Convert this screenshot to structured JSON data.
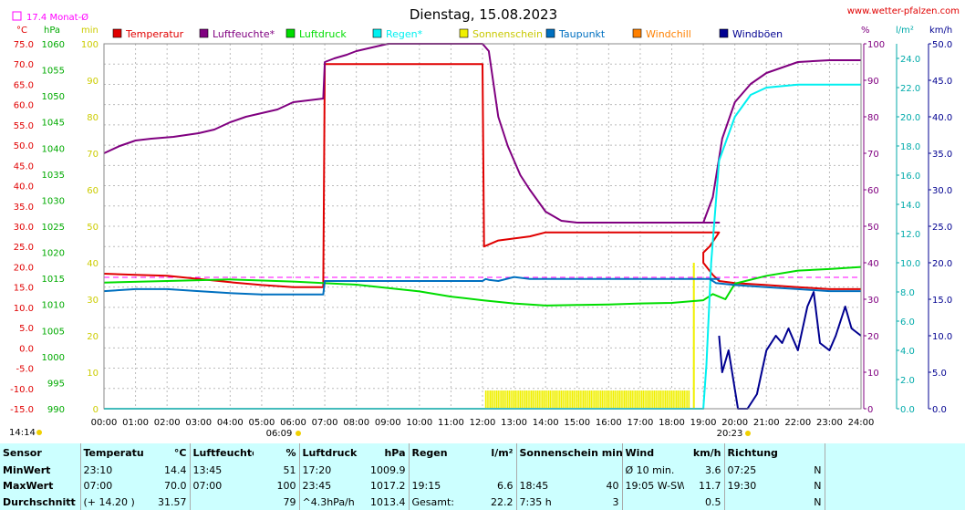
{
  "header": {
    "title": "Dienstag, 15.08.2023",
    "site": "www.wetter-pfalzen.com",
    "month_avg": "17.4 Monat-Ø",
    "start_time": "14:14",
    "sunrise_time": "06:09",
    "sunset_time": "20:23"
  },
  "units": {
    "temp": "°C",
    "press": "hPa",
    "sun": "min",
    "pct": "%",
    "rain": "l/m²",
    "wind": "km/h"
  },
  "colors": {
    "temperatur": "#e00000",
    "luftfeuchte": "#800080",
    "luftdruck": "#00dd00",
    "regen": "#00f0f0",
    "sonnenschein": "#f0f000",
    "taupunkt": "#0070c0",
    "windchill": "#ff8000",
    "windboeen": "#000090",
    "monthavg": "#ff00ff"
  },
  "chart_data": {
    "type": "line",
    "x_unit": "hours",
    "x_ticks": [
      "00:00",
      "01:00",
      "02:00",
      "03:00",
      "04:00",
      "05:00",
      "06:00",
      "07:00",
      "08:00",
      "09:00",
      "10:00",
      "11:00",
      "12:00",
      "13:00",
      "14:00",
      "15:00",
      "16:00",
      "17:00",
      "18:00",
      "19:00",
      "20:00",
      "21:00",
      "22:00",
      "23:00",
      "24:00"
    ],
    "axes": {
      "temp": {
        "min": -15,
        "max": 75,
        "ticks": [
          "75.0",
          "70.0",
          "65.0",
          "60.0",
          "55.0",
          "50.0",
          "45.0",
          "40.0",
          "35.0",
          "30.0",
          "25.0",
          "20.0",
          "15.0",
          "10.0",
          "5.0",
          "0.0",
          "-5.0",
          "-10.0",
          "-15.0"
        ]
      },
      "press": {
        "min": 990,
        "max": 1060,
        "ticks": [
          "1060",
          "1055",
          "1050",
          "1045",
          "1040",
          "1035",
          "1030",
          "1025",
          "1020",
          "1015",
          "1010",
          "1005",
          "1000",
          "995",
          "990"
        ]
      },
      "sun": {
        "min": 0,
        "max": 100,
        "ticks": [
          "100",
          "90",
          "80",
          "70",
          "60",
          "50",
          "40",
          "30",
          "20",
          "10",
          "0"
        ]
      },
      "pct": {
        "min": 0,
        "max": 100,
        "ticks": [
          "100",
          "90",
          "80",
          "70",
          "60",
          "50",
          "40",
          "30",
          "20",
          "10",
          "0"
        ]
      },
      "rain": {
        "min": 0,
        "max": 25,
        "ticks": [
          "24.0",
          "22.0",
          "20.0",
          "18.0",
          "16.0",
          "14.0",
          "12.0",
          "10.0",
          "8.0",
          "6.0",
          "4.0",
          "2.0",
          "0.0"
        ]
      },
      "wind": {
        "min": 0,
        "max": 50,
        "ticks": [
          "50.0",
          "45.0",
          "40.0",
          "35.0",
          "30.0",
          "25.0",
          "20.0",
          "15.0",
          "10.0",
          "5.0",
          "0.0"
        ]
      }
    },
    "month_avg_temp": 17.4,
    "legend": [
      "Temperatur",
      "Luftfeuchte*",
      "Luftdruck",
      "Regen*",
      "Sonnenschein",
      "Taupunkt",
      "Windchill",
      "Windböen"
    ],
    "series": [
      {
        "name": "Temperatur",
        "axis": "temp",
        "points": [
          [
            0,
            18.3
          ],
          [
            1,
            18
          ],
          [
            2,
            17.8
          ],
          [
            3,
            17
          ],
          [
            4,
            16.2
          ],
          [
            5,
            15.5
          ],
          [
            6,
            15
          ],
          [
            6.95,
            15
          ],
          [
            7,
            70
          ],
          [
            12,
            70
          ],
          [
            12.05,
            25
          ],
          [
            12.5,
            26.5
          ],
          [
            13.5,
            27.5
          ],
          [
            14,
            28.5
          ],
          [
            19.5,
            28.5
          ],
          [
            19.2,
            25
          ],
          [
            19,
            23.5
          ],
          [
            19,
            21
          ],
          [
            19.3,
            18
          ],
          [
            19.5,
            16.5
          ],
          [
            20,
            16
          ],
          [
            21,
            15.5
          ],
          [
            22,
            15
          ],
          [
            23,
            14.5
          ],
          [
            24,
            14.5
          ]
        ]
      },
      {
        "name": "Luftfeuchte*",
        "axis": "pct",
        "points": [
          [
            0,
            70
          ],
          [
            0.5,
            72
          ],
          [
            1,
            73.5
          ],
          [
            1.5,
            74
          ],
          [
            2.2,
            74.5
          ],
          [
            3,
            75.5
          ],
          [
            3.5,
            76.5
          ],
          [
            4,
            78.5
          ],
          [
            4.5,
            80
          ],
          [
            5,
            81
          ],
          [
            5.5,
            82
          ],
          [
            6,
            84
          ],
          [
            6.95,
            85
          ],
          [
            7,
            95
          ],
          [
            7.3,
            96
          ],
          [
            7.7,
            97
          ],
          [
            8,
            98
          ],
          [
            8.5,
            99
          ],
          [
            9,
            100
          ],
          [
            12,
            100
          ],
          [
            12.2,
            98
          ],
          [
            12.5,
            80
          ],
          [
            12.8,
            72
          ],
          [
            13.2,
            64
          ],
          [
            13.5,
            60
          ],
          [
            14,
            54
          ],
          [
            14.5,
            51.5
          ],
          [
            15,
            51
          ],
          [
            19.5,
            51
          ],
          [
            19,
            51
          ],
          [
            19.3,
            58
          ],
          [
            19.6,
            74
          ],
          [
            20,
            84
          ],
          [
            20.5,
            89
          ],
          [
            21,
            92
          ],
          [
            22,
            95
          ],
          [
            23,
            95.5
          ],
          [
            24,
            95.5
          ]
        ]
      },
      {
        "name": "Luftdruck",
        "axis": "press",
        "points": [
          [
            0,
            1014.2
          ],
          [
            2,
            1014.5
          ],
          [
            4,
            1014.8
          ],
          [
            6,
            1014.4
          ],
          [
            8,
            1013.8
          ],
          [
            10,
            1012.5
          ],
          [
            11,
            1011.5
          ],
          [
            12,
            1010.8
          ],
          [
            13,
            1010.2
          ],
          [
            14,
            1009.8
          ],
          [
            15,
            1009.9
          ],
          [
            16,
            1010
          ],
          [
            17,
            1010.2
          ],
          [
            18,
            1010.3
          ],
          [
            19,
            1010.8
          ],
          [
            19.3,
            1012
          ],
          [
            19.7,
            1011
          ],
          [
            20,
            1014
          ],
          [
            21,
            1015.5
          ],
          [
            22,
            1016.5
          ],
          [
            23,
            1016.8
          ],
          [
            24,
            1017.2
          ]
        ]
      },
      {
        "name": "Regen*",
        "axis": "rain",
        "points": [
          [
            0,
            0
          ],
          [
            19,
            0
          ],
          [
            19.1,
            3
          ],
          [
            19.25,
            10
          ],
          [
            19.5,
            17
          ],
          [
            20,
            20
          ],
          [
            20.5,
            21.5
          ],
          [
            21,
            22
          ],
          [
            22,
            22.2
          ],
          [
            24,
            22.2
          ]
        ]
      },
      {
        "name": "Taupunkt",
        "axis": "temp",
        "points": [
          [
            0,
            14
          ],
          [
            1,
            14.5
          ],
          [
            2,
            14.5
          ],
          [
            3,
            14
          ],
          [
            4,
            13.5
          ],
          [
            5,
            13.2
          ],
          [
            6,
            13.2
          ],
          [
            6.95,
            13.2
          ],
          [
            7,
            16.5
          ],
          [
            12,
            16.5
          ],
          [
            12.1,
            17
          ],
          [
            12.2,
            16.8
          ],
          [
            12.5,
            16.5
          ],
          [
            13,
            17.5
          ],
          [
            13.5,
            17
          ],
          [
            14,
            17
          ],
          [
            19.5,
            17
          ],
          [
            19.2,
            17
          ],
          [
            19.4,
            16
          ],
          [
            20,
            15.5
          ],
          [
            21,
            15
          ],
          [
            22,
            14.5
          ],
          [
            23,
            14
          ],
          [
            24,
            14
          ]
        ]
      },
      {
        "name": "Windböen",
        "axis": "wind",
        "points": [
          [
            19.5,
            10
          ],
          [
            19.6,
            5
          ],
          [
            19.8,
            8
          ],
          [
            20.1,
            0
          ],
          [
            20.4,
            0
          ],
          [
            20.7,
            2
          ],
          [
            21,
            8
          ],
          [
            21.3,
            10
          ],
          [
            21.5,
            9
          ],
          [
            21.7,
            11
          ],
          [
            22,
            8
          ],
          [
            22.3,
            14
          ],
          [
            22.5,
            16
          ],
          [
            22.7,
            9
          ],
          [
            23,
            8
          ],
          [
            23.2,
            10
          ],
          [
            23.5,
            14
          ],
          [
            23.7,
            11
          ],
          [
            24,
            10
          ]
        ]
      }
    ],
    "sunshine_bars": [
      [
        12.1,
        12.6
      ],
      [
        12.6,
        13.1
      ],
      [
        13.1,
        13.6
      ],
      [
        13.6,
        14.1
      ],
      [
        14.1,
        14.6
      ],
      [
        14.6,
        15.1
      ],
      [
        15.1,
        15.6
      ],
      [
        15.6,
        16.1
      ],
      [
        16.1,
        16.6
      ],
      [
        16.6,
        17.1
      ],
      [
        17.1,
        17.6
      ],
      [
        17.6,
        18.1
      ],
      [
        18.1,
        18.6
      ]
    ]
  },
  "stats": {
    "headers": {
      "sensor": "Sensor",
      "temp": "Temperatur",
      "temp_unit": "°C",
      "hum": "Luftfeuchte",
      "hum_unit": "%",
      "press": "Luftdruck",
      "press_unit": "hPa",
      "rain": "Regen",
      "rain_unit": "l/m²",
      "sun": "Sonnenschein min",
      "wind": "Wind",
      "wind_unit": "km/h",
      "dir": "Richtung"
    },
    "rows": [
      {
        "label": "MinWert",
        "t_time": "23:10",
        "t_val": "14.4",
        "h_time": "13:45",
        "h_val": "51",
        "p_time": "17:20",
        "p_val": "1009.9",
        "r_time": "",
        "r_val": "",
        "s_time": "",
        "s_val": "",
        "w_label": "Ø 10 min.",
        "w_val": "3.6",
        "d_time": "07:25",
        "d_val": "N"
      },
      {
        "label": "MaxWert",
        "t_time": "07:00",
        "t_val": "70.0",
        "h_time": "07:00",
        "h_val": "100",
        "p_time": "23:45",
        "p_val": "1017.2",
        "r_time": "19:15",
        "r_val": "6.6",
        "s_time": "18:45",
        "s_val": "40",
        "w_label": "19:05   W-SW",
        "w_val": "11.7",
        "d_time": "19:30",
        "d_val": "N"
      },
      {
        "label": "Durchschnitt",
        "t_time": "(+ 14.20 )",
        "t_val": "31.57",
        "h_time": "",
        "h_val": "79",
        "p_time": "^4.3hPa/h",
        "p_val": "1013.4",
        "r_time": "Gesamt:",
        "r_val": "22.2",
        "s_time": "7:35 h",
        "s_val": "3",
        "w_label": "",
        "w_val": "0.5",
        "d_time": "",
        "d_val": "N"
      }
    ]
  }
}
